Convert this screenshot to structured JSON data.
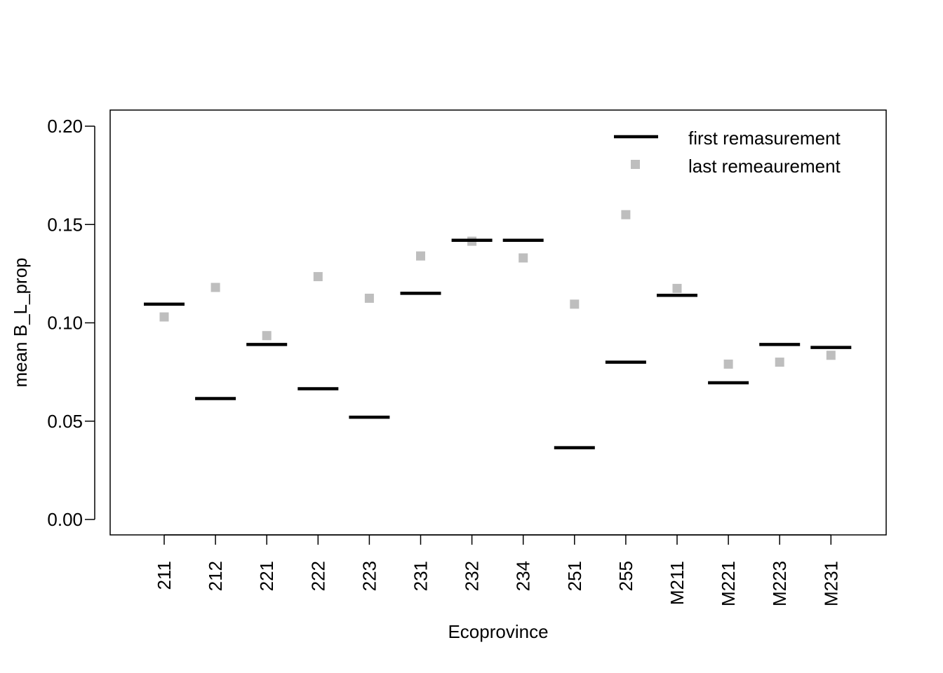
{
  "chart_data": {
    "type": "scatter",
    "title": "",
    "xlabel": "Ecoprovince",
    "ylabel": "mean B_L_prop",
    "ylim": [
      0,
      0.2
    ],
    "yticks": [
      "0.00",
      "0.05",
      "0.10",
      "0.15",
      "0.20"
    ],
    "categories": [
      "211",
      "212",
      "221",
      "222",
      "223",
      "231",
      "232",
      "234",
      "251",
      "255",
      "M211",
      "M221",
      "M223",
      "M231"
    ],
    "series": [
      {
        "name": "first remasurement",
        "marker": "horizontal-bar",
        "color": "#000000",
        "values": [
          0.1095,
          0.0615,
          0.089,
          0.0665,
          0.052,
          0.115,
          0.142,
          0.142,
          0.0365,
          0.08,
          0.114,
          0.0695,
          0.089,
          0.0875
        ]
      },
      {
        "name": "last remeaurement",
        "marker": "square",
        "color": "#bebebe",
        "values": [
          0.103,
          0.118,
          0.0935,
          0.1235,
          0.1125,
          0.134,
          0.1415,
          0.133,
          0.1095,
          0.155,
          0.1175,
          0.079,
          0.08,
          0.0835
        ]
      }
    ],
    "extra_points": [
      {
        "series": "last remeaurement",
        "x_between": [
          "255",
          "M211"
        ],
        "value": 0.1805
      }
    ],
    "legend": "top-right",
    "grid": false
  }
}
